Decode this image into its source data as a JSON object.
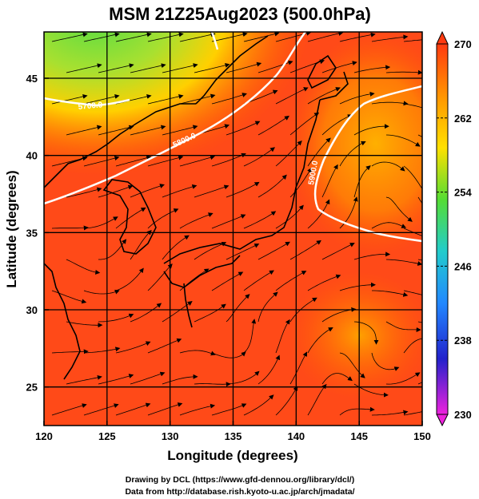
{
  "title": "MSM 21Z25Aug2023 (500.0hPa)",
  "x_axis": {
    "label": "Longitude (degrees)",
    "range": [
      120,
      150
    ],
    "ticks": [
      "120",
      "125",
      "130",
      "135",
      "140",
      "145",
      "150"
    ]
  },
  "y_axis": {
    "label": "Latitude  (degrees)",
    "range": [
      22.5,
      48
    ],
    "ticks": [
      "25",
      "30",
      "35",
      "40",
      "45"
    ]
  },
  "colorbar": {
    "range": [
      230,
      270
    ],
    "ticks": [
      "270",
      "262",
      "254",
      "246",
      "238",
      "230"
    ]
  },
  "contour_labels": [
    "5700.0",
    "5800.0",
    "5900.0"
  ],
  "credits": {
    "line1": "Drawing by DCL (https://www.gfd-dennou.org/library/dcl/)",
    "line2": "Data from http://database.rish.kyoto-u.ac.jp/arch/jmadata/"
  },
  "colors": {
    "warm": "#ff3a10",
    "mid": "#ff9a00",
    "cool": "#66dd33",
    "contour": "#ffffff",
    "streamline": "#000000"
  }
}
